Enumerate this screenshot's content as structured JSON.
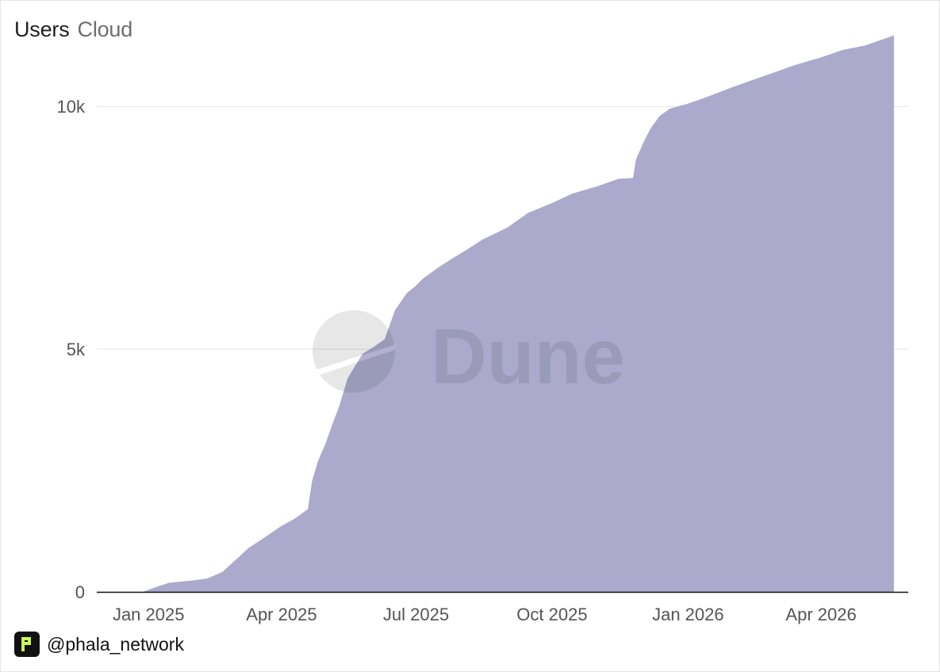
{
  "header": {
    "title": "Users",
    "subtitle": "Cloud"
  },
  "footer": {
    "handle": "@phala_network",
    "logo": "phala-logo-icon"
  },
  "watermark": {
    "text": "Dune",
    "logo": "dune-logo-icon"
  },
  "colors": {
    "area": "#abaacd",
    "grid": "#e3e3e3",
    "axis": "#111111",
    "tick": "#555555",
    "logo_accent": "#cdfa50"
  },
  "chart_data": {
    "type": "area",
    "title": "Users",
    "subtitle": "Cloud",
    "xlabel": "",
    "ylabel": "",
    "xlim": [
      "2024-11-27",
      "2026-05-30"
    ],
    "ylim": [
      0,
      11800
    ],
    "x_ticks": [
      {
        "date": "2025-01-01",
        "label": "Jan 2025"
      },
      {
        "date": "2025-04-01",
        "label": "Apr 2025"
      },
      {
        "date": "2025-07-01",
        "label": "Jul 2025"
      },
      {
        "date": "2025-10-01",
        "label": "Oct 2025"
      },
      {
        "date": "2026-01-01",
        "label": "Jan 2026"
      },
      {
        "date": "2026-04-01",
        "label": "Apr 2026"
      }
    ],
    "y_ticks": [
      {
        "value": 0,
        "label": "0"
      },
      {
        "value": 5000,
        "label": "5k"
      },
      {
        "value": 10000,
        "label": "10k"
      }
    ],
    "grid": true,
    "legend": "none",
    "series": [
      {
        "x": [
          "2024-12-29",
          "2025-01-05",
          "2025-01-15",
          "2025-02-01",
          "2025-02-10",
          "2025-02-20",
          "2025-03-01",
          "2025-03-10",
          "2025-03-20",
          "2025-04-01",
          "2025-04-10",
          "2025-04-19",
          "2025-04-22",
          "2025-04-26",
          "2025-05-01",
          "2025-05-05",
          "2025-05-10",
          "2025-05-16",
          "2025-05-22",
          "2025-05-26",
          "2025-06-03",
          "2025-06-10",
          "2025-06-17",
          "2025-06-25",
          "2025-07-01",
          "2025-07-06",
          "2025-07-15",
          "2025-07-25",
          "2025-08-05",
          "2025-08-15",
          "2025-09-01",
          "2025-09-15",
          "2025-10-01",
          "2025-10-15",
          "2025-11-01",
          "2025-11-15",
          "2025-11-25",
          "2025-11-27",
          "2025-12-02",
          "2025-12-07",
          "2025-12-13",
          "2025-12-20",
          "2026-01-01",
          "2026-01-15",
          "2026-02-01",
          "2026-02-15",
          "2026-03-01",
          "2026-03-15",
          "2026-04-01",
          "2026-04-15",
          "2026-05-01",
          "2026-05-20"
        ],
        "values": [
          0,
          80,
          180,
          230,
          270,
          400,
          650,
          900,
          1100,
          1350,
          1500,
          1700,
          2300,
          2700,
          3050,
          3400,
          3800,
          4400,
          4700,
          4900,
          5050,
          5200,
          5800,
          6150,
          6300,
          6450,
          6650,
          6850,
          7050,
          7250,
          7500,
          7800,
          8000,
          8200,
          8350,
          8500,
          8520,
          8900,
          9250,
          9550,
          9800,
          9950,
          10050,
          10200,
          10400,
          10550,
          10700,
          10850,
          11000,
          11150,
          11250,
          11450
        ]
      }
    ]
  }
}
